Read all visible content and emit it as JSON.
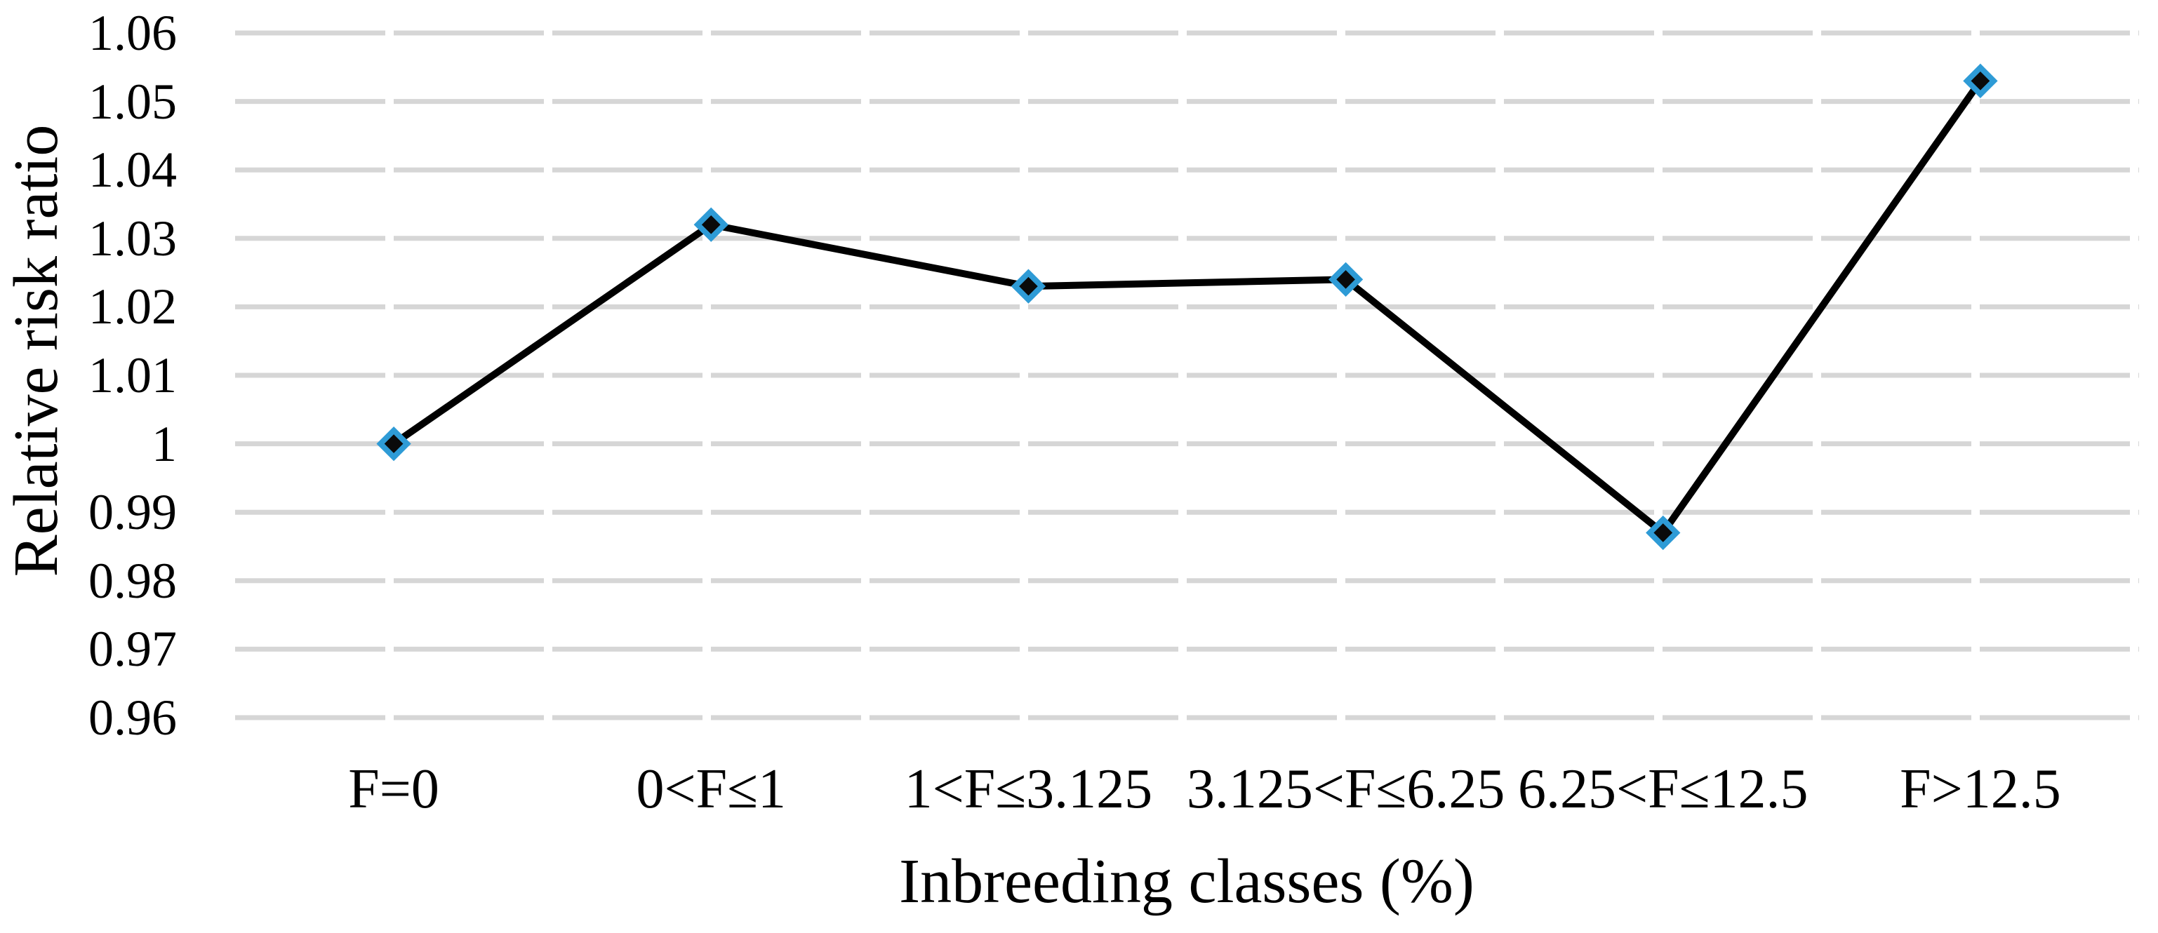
{
  "chart_data": {
    "type": "line",
    "title": "",
    "xlabel": "Inbreeding classes (%)",
    "ylabel": "Relative risk ratio",
    "categories": [
      "F=0",
      "0<F≤1",
      "1<F≤3.125",
      "3.125<F≤6.25",
      "6.25<F≤12.5",
      "F>12.5"
    ],
    "series": [
      {
        "name": "Relative risk ratio",
        "values": [
          1.0,
          1.032,
          1.023,
          1.024,
          0.987,
          1.053
        ]
      }
    ],
    "ylim": [
      0.96,
      1.06
    ],
    "yticks": [
      0.96,
      0.97,
      0.98,
      0.99,
      1,
      1.01,
      1.02,
      1.03,
      1.04,
      1.05,
      1.06
    ],
    "ytick_labels": [
      "0.96",
      "0.97",
      "0.98",
      "0.99",
      "1",
      "1.01",
      "1.02",
      "1.03",
      "1.04",
      "1.05",
      "1.06"
    ],
    "grid": "horizontal, dashed, behind data",
    "legend": "none",
    "marker_shape": "diamond",
    "colors": {
      "background": "#ffffff",
      "line": "#000000",
      "marker_fill": "#0a0a0a",
      "marker_border": "#2e9bd6",
      "gridline": "#d6d6d6",
      "text": "#000000"
    }
  }
}
